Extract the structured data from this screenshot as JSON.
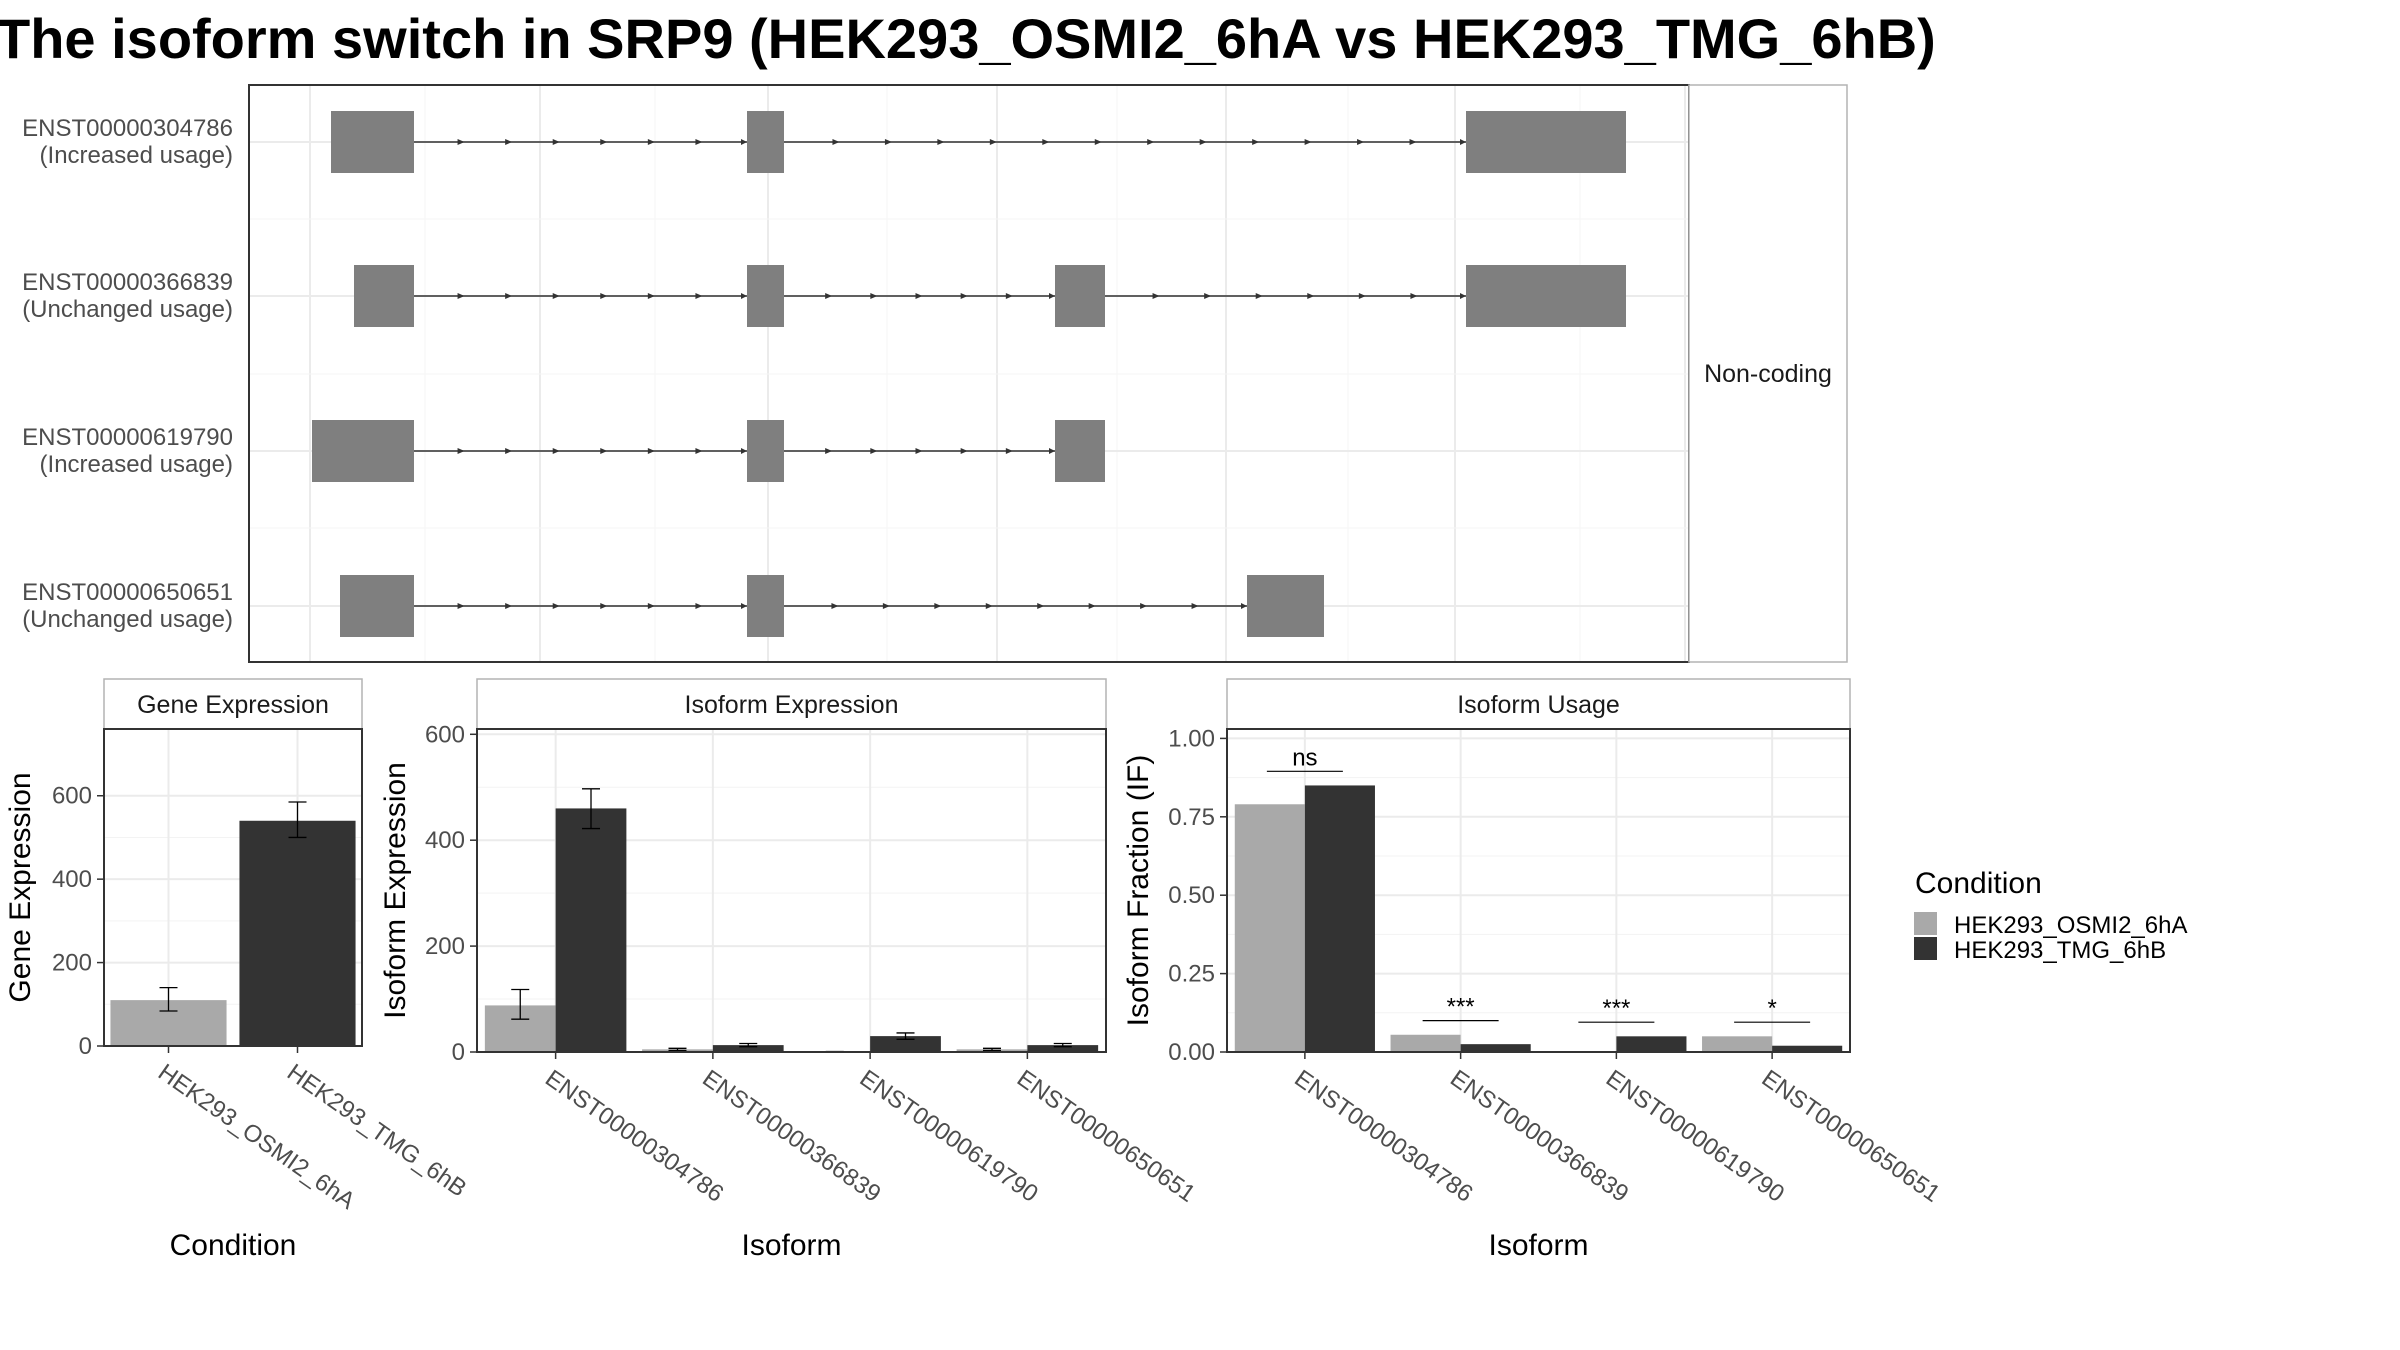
{
  "title": "The isoform switch in SRP9 (HEK293_OSMI2_6hA vs HEK293_TMG_6hB)",
  "colors": {
    "condA": "#a9a9a9",
    "condB": "#333333",
    "exon": "#7f7f7f",
    "grid": "#ebebeb",
    "panel_border": "#333333",
    "strip_border": "#b3b3b3",
    "intron": "#333333"
  },
  "transcripts": {
    "strip_label": "Non-coding",
    "rows": [
      {
        "id": "ENST00000304786",
        "usage": "(Increased usage)"
      },
      {
        "id": "ENST00000366839",
        "usage": "(Unchanged usage)"
      },
      {
        "id": "ENST00000619790",
        "usage": "(Increased usage)"
      },
      {
        "id": "ENST00000650651",
        "usage": "(Unchanged usage)"
      }
    ]
  },
  "legend": {
    "title": "Condition",
    "items": [
      "HEK293_OSMI2_6hA",
      "HEK293_TMG_6hB"
    ]
  },
  "chart_data": [
    {
      "type": "bar",
      "strip_title": "Gene Expression",
      "xlabel": "Condition",
      "ylabel": "Gene Expression",
      "ylim": [
        0,
        760
      ],
      "yticks": [
        0,
        200,
        400,
        600
      ],
      "categories": [
        "HEK293_OSMI2_6hA",
        "HEK293_TMG_6hB"
      ],
      "values": [
        110,
        540
      ],
      "error_low": [
        84,
        500
      ],
      "error_high": [
        140,
        585
      ]
    },
    {
      "type": "bar",
      "strip_title": "Isoform Expression",
      "xlabel": "Isoform",
      "ylabel": "Isoform Expression",
      "ylim": [
        0,
        610
      ],
      "yticks": [
        0,
        200,
        400,
        600
      ],
      "categories": [
        "ENST00000304786",
        "ENST00000366839",
        "ENST00000619790",
        "ENST00000650651"
      ],
      "series": [
        {
          "name": "HEK293_OSMI2_6hA",
          "values": [
            88,
            5,
            0,
            5
          ],
          "error_low": [
            62,
            3,
            0,
            3
          ],
          "error_high": [
            118,
            7,
            1,
            7
          ]
        },
        {
          "name": "HEK293_TMG_6hB",
          "values": [
            460,
            13,
            30,
            13
          ],
          "error_low": [
            422,
            10,
            24,
            10
          ],
          "error_high": [
            497,
            16,
            36,
            16
          ]
        }
      ]
    },
    {
      "type": "bar",
      "strip_title": "Isoform Usage",
      "xlabel": "Isoform",
      "ylabel": "Isoform Fraction (IF)",
      "ylim": [
        0,
        1.03
      ],
      "yticks": [
        "0.00",
        "0.25",
        "0.50",
        "0.75",
        "1.00"
      ],
      "categories": [
        "ENST00000304786",
        "ENST00000366839",
        "ENST00000619790",
        "ENST00000650651"
      ],
      "series": [
        {
          "name": "HEK293_OSMI2_6hA",
          "values": [
            0.79,
            0.055,
            0.0,
            0.05
          ]
        },
        {
          "name": "HEK293_TMG_6hB",
          "values": [
            0.85,
            0.025,
            0.05,
            0.02
          ]
        }
      ],
      "significance": [
        "ns",
        "***",
        "***",
        "*"
      ]
    }
  ]
}
